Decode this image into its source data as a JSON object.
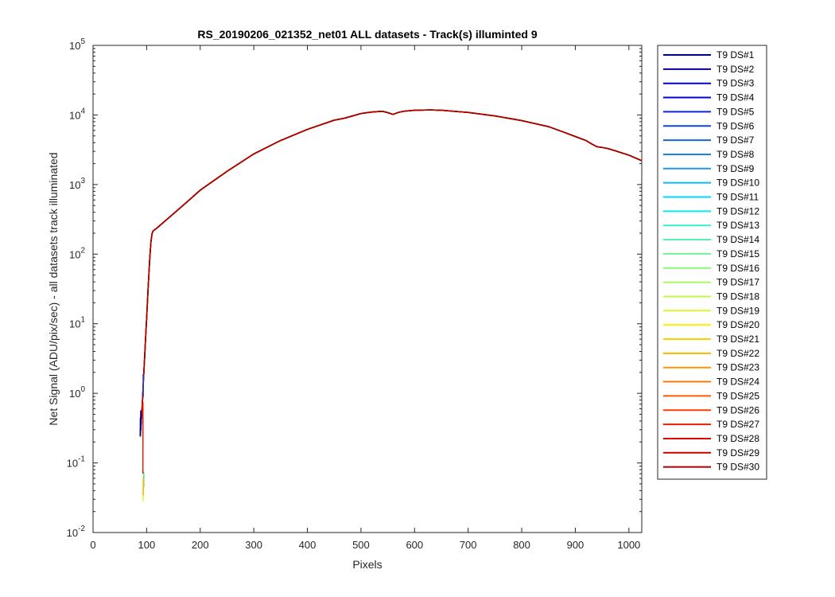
{
  "chart_data": {
    "type": "line",
    "title": "RS_20190206_021352_net01 ALL datasets - Track(s) illuminted 9",
    "xlabel": "Pixels",
    "ylabel": "Net Signal (ADU/pix/sec) - all datasets track illuminated",
    "xlim": [
      0,
      1024
    ],
    "ylim": [
      0.01,
      100000
    ],
    "yscale": "log",
    "grid": false,
    "legend_position": "outside-right",
    "xticks": [
      0,
      100,
      200,
      300,
      400,
      500,
      600,
      700,
      800,
      900,
      1000
    ],
    "yticks": [
      {
        "value": 0.01,
        "base": "10",
        "exp": "-2"
      },
      {
        "value": 0.1,
        "base": "10",
        "exp": "-1"
      },
      {
        "value": 1,
        "base": "10",
        "exp": "0"
      },
      {
        "value": 10,
        "base": "10",
        "exp": "1"
      },
      {
        "value": 100,
        "base": "10",
        "exp": "2"
      },
      {
        "value": 1000,
        "base": "10",
        "exp": "3"
      },
      {
        "value": 10000,
        "base": "10",
        "exp": "4"
      },
      {
        "value": 100000,
        "base": "10",
        "exp": "5"
      }
    ],
    "x": [
      88,
      90,
      92,
      94,
      96,
      98,
      100,
      103,
      106,
      108,
      110,
      112,
      120,
      130,
      150,
      175,
      200,
      250,
      300,
      350,
      400,
      450,
      470,
      500,
      520,
      540,
      550,
      560,
      570,
      580,
      600,
      630,
      650,
      700,
      750,
      800,
      850,
      880,
      900,
      920,
      930,
      940,
      950,
      960,
      975,
      1000,
      1010,
      1024
    ],
    "y": [
      0.24,
      0.4,
      0.7,
      1.5,
      3,
      6,
      12,
      35,
      90,
      150,
      195,
      215,
      240,
      280,
      380,
      560,
      830,
      1550,
      2750,
      4300,
      6200,
      8400,
      9000,
      10500,
      11000,
      11300,
      10800,
      10200,
      10900,
      11300,
      11700,
      11800,
      11700,
      10900,
      9700,
      8300,
      6800,
      5600,
      4900,
      4300,
      3850,
      3500,
      3420,
      3300,
      3050,
      2650,
      2450,
      2200
    ],
    "start_spikes": [
      {
        "series": 0,
        "x": [
          88,
          88.3,
          88.6,
          89,
          89.4,
          89.8
        ],
        "y": [
          0.24,
          0.45,
          0.26,
          0.57,
          0.3,
          0.5
        ]
      },
      {
        "series": 5,
        "x": [
          93.5,
          93.8
        ],
        "y": [
          1.9,
          0.9
        ]
      },
      {
        "series": 10,
        "x": [
          94.5,
          94.8
        ],
        "y": [
          0.045,
          0.07
        ]
      },
      {
        "series": 12,
        "x": [
          94.2,
          94.5
        ],
        "y": [
          0.05,
          0.075
        ]
      },
      {
        "series": 18,
        "x": [
          93.3,
          93.6
        ],
        "y": [
          0.028,
          0.06
        ]
      },
      {
        "series": 21,
        "x": [
          93.6,
          93.9
        ],
        "y": [
          0.034,
          0.065
        ]
      },
      {
        "series": 26,
        "x": [
          93.0,
          93.2
        ],
        "y": [
          0.07,
          0.75
        ]
      }
    ],
    "series": [
      {
        "name": "T9 DS#1",
        "color": "#00008f"
      },
      {
        "name": "T9 DS#2",
        "color": "#0000a3"
      },
      {
        "name": "T9 DS#3",
        "color": "#0000c1"
      },
      {
        "name": "T9 DS#4",
        "color": "#0000e0"
      },
      {
        "name": "T9 DS#5",
        "color": "#0c22f4"
      },
      {
        "name": "T9 DS#6",
        "color": "#0e44e6"
      },
      {
        "name": "T9 DS#7",
        "color": "#1166dd"
      },
      {
        "name": "T9 DS#8",
        "color": "#1780ea"
      },
      {
        "name": "T9 DS#9",
        "color": "#1a9cee"
      },
      {
        "name": "T9 DS#10",
        "color": "#10b8f0"
      },
      {
        "name": "T9 DS#11",
        "color": "#00d4f8"
      },
      {
        "name": "T9 DS#12",
        "color": "#0ee8e8"
      },
      {
        "name": "T9 DS#13",
        "color": "#35f0cc"
      },
      {
        "name": "T9 DS#14",
        "color": "#55f2b0"
      },
      {
        "name": "T9 DS#15",
        "color": "#6ff594"
      },
      {
        "name": "T9 DS#16",
        "color": "#8cf67a"
      },
      {
        "name": "T9 DS#17",
        "color": "#a6f860"
      },
      {
        "name": "T9 DS#18",
        "color": "#c4f846"
      },
      {
        "name": "T9 DS#19",
        "color": "#e0f42c"
      },
      {
        "name": "T9 DS#20",
        "color": "#fff000"
      },
      {
        "name": "T9 DS#21",
        "color": "#ffd000"
      },
      {
        "name": "T9 DS#22",
        "color": "#ffb400"
      },
      {
        "name": "T9 DS#23",
        "color": "#ff9600"
      },
      {
        "name": "T9 DS#24",
        "color": "#ff7800"
      },
      {
        "name": "T9 DS#25",
        "color": "#ff5a00"
      },
      {
        "name": "T9 DS#26",
        "color": "#ff3c00"
      },
      {
        "name": "T9 DS#27",
        "color": "#f01e00"
      },
      {
        "name": "T9 DS#28",
        "color": "#e00000"
      },
      {
        "name": "T9 DS#29",
        "color": "#c40000"
      },
      {
        "name": "T9 DS#30",
        "color": "#a50000"
      }
    ]
  }
}
